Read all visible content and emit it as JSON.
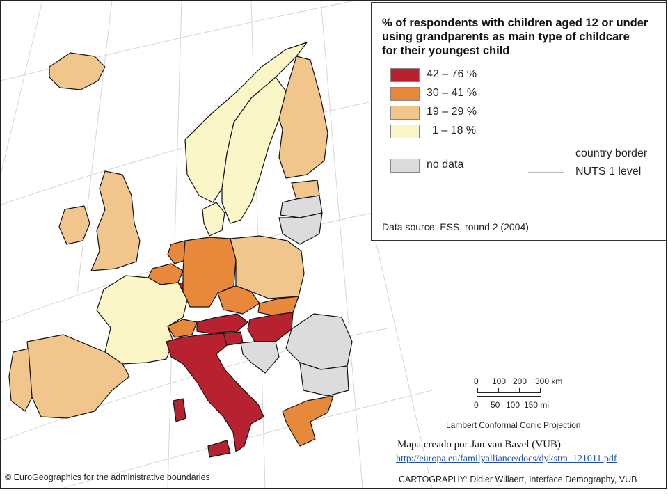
{
  "legend": {
    "title": "% of respondents with children aged 12 or under\n using grandparents as main type of childcare\nfor their youngest child",
    "classes": [
      {
        "label": "42 – 76 %",
        "color": "#b8212f"
      },
      {
        "label": "30 – 41 %",
        "color": "#e8883a"
      },
      {
        "label": "19 – 29 %",
        "color": "#f1c68d"
      },
      {
        "label": "1 – 18 %",
        "color": "#fbf6c8"
      }
    ],
    "no_data": {
      "label": "no data",
      "color": "#dcdcdc"
    },
    "lines": [
      {
        "label": "country border",
        "color": "#111111"
      },
      {
        "label": "NUTS 1 level",
        "color": "#bbbbbb"
      }
    ],
    "data_source": "Data source: ESS, round 2 (2004)"
  },
  "scale": {
    "km_ticks": [
      "0",
      "100",
      "200",
      "300 km"
    ],
    "mi_ticks": [
      "0",
      "50",
      "100",
      "150 mi"
    ]
  },
  "projection": "Lambert Conformal Conic Projection",
  "credit": {
    "text": "Mapa creado por Jan van Bavel (VUB)",
    "link": "http://europa.eu/familyalliance/docs/dykstra_121011.pdf"
  },
  "copyright": "© EuroGeographics for the administrative boundaries",
  "cartography": "CARTOGRAPHY: Didier Willaert, Interface Demography, VUB",
  "regions": [
    {
      "name": "Iceland",
      "class": "19 – 29 %"
    },
    {
      "name": "Ireland",
      "class": "19 – 29 %"
    },
    {
      "name": "United Kingdom",
      "class": "19 – 29 %"
    },
    {
      "name": "Norway",
      "class": "1 – 18 %"
    },
    {
      "name": "Sweden",
      "class": "1 – 18 %"
    },
    {
      "name": "Finland",
      "class": "19 – 29 %"
    },
    {
      "name": "Estonia",
      "class": "19 – 29 %"
    },
    {
      "name": "Latvia",
      "class": "no data"
    },
    {
      "name": "Lithuania",
      "class": "no data"
    },
    {
      "name": "Denmark",
      "class": "1 – 18 %"
    },
    {
      "name": "Netherlands",
      "class": "30 – 41 %"
    },
    {
      "name": "Belgium",
      "class": "30 – 41 %"
    },
    {
      "name": "Luxembourg",
      "class": "42 – 76 %"
    },
    {
      "name": "Germany",
      "class": "30 – 41 %"
    },
    {
      "name": "Poland",
      "class": "19 – 29 %"
    },
    {
      "name": "France",
      "class": "1 – 18 %"
    },
    {
      "name": "Switzerland",
      "class": "30 – 41 %"
    },
    {
      "name": "Austria",
      "class": "42 – 76 %"
    },
    {
      "name": "Czech Republic",
      "class": "30 – 41 %"
    },
    {
      "name": "Slovakia",
      "class": "30 – 41 %"
    },
    {
      "name": "Hungary",
      "class": "42 – 76 %"
    },
    {
      "name": "Slovenia",
      "class": "42 – 76 %"
    },
    {
      "name": "Italy",
      "class": "42 – 76 %"
    },
    {
      "name": "Croatia",
      "class": "no data"
    },
    {
      "name": "Romania",
      "class": "no data"
    },
    {
      "name": "Bulgaria",
      "class": "no data"
    },
    {
      "name": "Greece",
      "class": "30 – 41 %"
    },
    {
      "name": "Spain",
      "class": "19 – 29 %"
    },
    {
      "name": "Portugal",
      "class": "19 – 29 %"
    }
  ]
}
